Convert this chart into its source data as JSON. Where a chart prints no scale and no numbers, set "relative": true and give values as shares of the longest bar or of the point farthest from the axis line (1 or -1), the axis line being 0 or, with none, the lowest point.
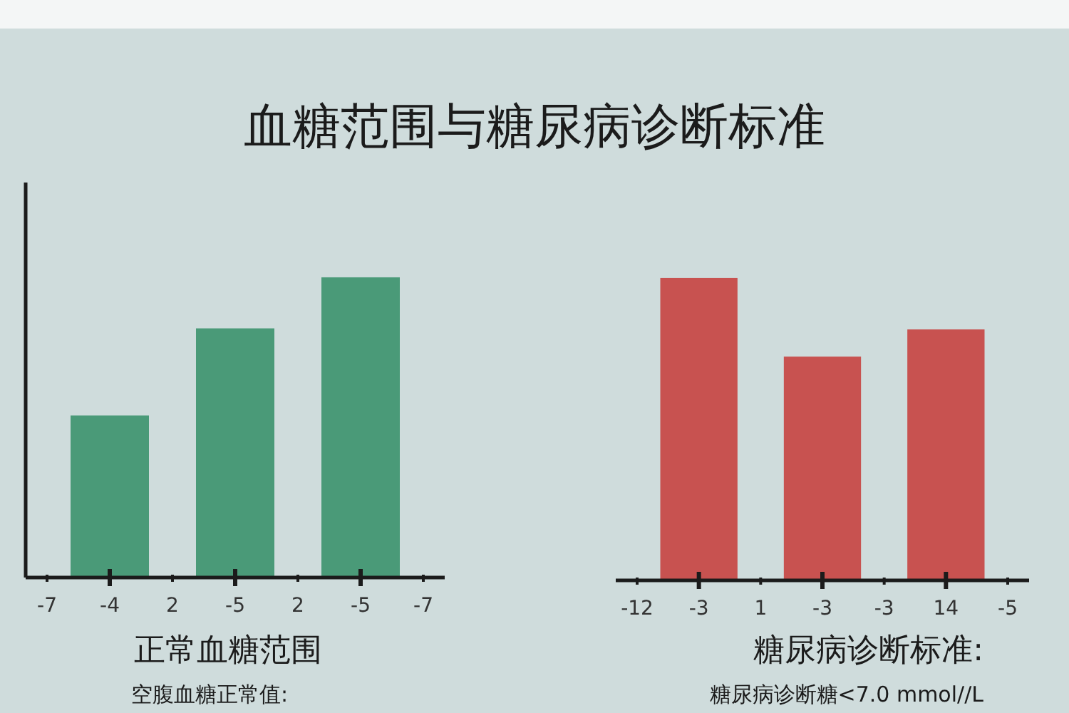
{
  "chart_data": [
    {
      "type": "bar",
      "title": "血糖范围与糖尿病诊断标准",
      "xlabel": "正常血糖范围",
      "annotations": [
        "空腹血糖正常值:"
      ],
      "relative": true,
      "categories": [
        "-7",
        "-4",
        "2",
        "-5",
        "2",
        "-5",
        "-7"
      ],
      "values": [
        null,
        0.54,
        null,
        0.83,
        null,
        1,
        null
      ],
      "color": "#4a9a78",
      "grid": false
    },
    {
      "type": "bar",
      "xlabel": "糖尿病诊断标准:",
      "annotations": [
        "糖尿病诊断糖<7.0 mmol//L"
      ],
      "relative": true,
      "categories": [
        "-12",
        "-3",
        "1",
        "-3",
        "-3",
        "14",
        "-5"
      ],
      "values": [
        null,
        1,
        null,
        0.74,
        null,
        0.83,
        null
      ],
      "color": "#c85250",
      "grid": false
    }
  ]
}
